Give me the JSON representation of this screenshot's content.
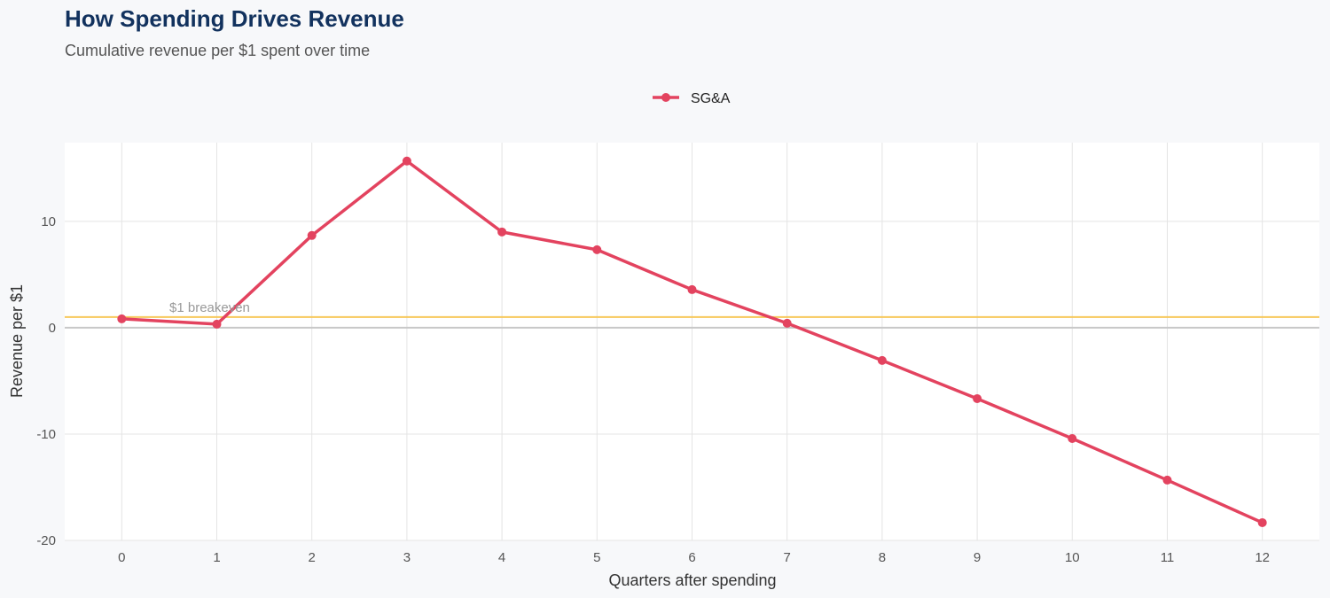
{
  "title": "How Spending Drives Revenue",
  "subtitle": "Cumulative revenue per $1 spent over time",
  "chart_data": {
    "type": "line",
    "xlabel": "Quarters after spending",
    "ylabel": "Revenue per $1",
    "x": [
      0,
      1,
      2,
      3,
      4,
      5,
      6,
      7,
      8,
      9,
      10,
      11,
      12
    ],
    "series": [
      {
        "name": "SG&A",
        "color": "#e3435f",
        "values": [
          0.83,
          0.33,
          8.67,
          15.67,
          9.0,
          7.33,
          3.58,
          0.42,
          -3.08,
          -6.67,
          -10.42,
          -14.33,
          -18.33
        ]
      }
    ],
    "xlim": [
      -0.6,
      12.6
    ],
    "ylim": [
      -20,
      17.4
    ],
    "x_ticks": [
      "0",
      "1",
      "2",
      "3",
      "4",
      "5",
      "6",
      "7",
      "8",
      "9",
      "10",
      "11",
      "12"
    ],
    "y_ticks": [
      {
        "value": 10,
        "label": "10"
      },
      {
        "value": 0,
        "label": "0"
      },
      {
        "value": -10,
        "label": "-10"
      },
      {
        "value": -20,
        "label": "-20"
      }
    ],
    "reference_line": {
      "value": 1,
      "label": "$1 breakeven",
      "color": "#f7c85a"
    },
    "legend_position": "top",
    "grid": true
  }
}
